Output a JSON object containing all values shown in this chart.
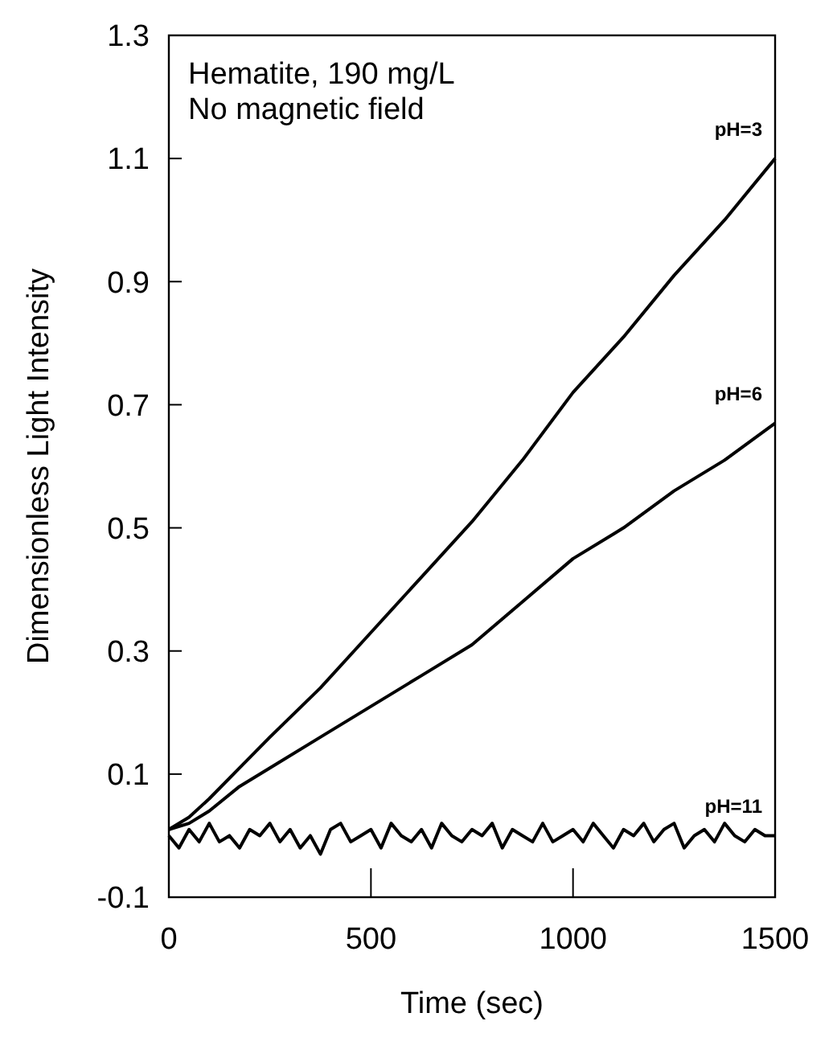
{
  "chart_data": {
    "type": "line",
    "xlabel": "Time (sec)",
    "ylabel": "Dimensionless Light Intensity",
    "annotations": [
      "Hematite, 190 mg/L",
      "No magnetic field"
    ],
    "xlim": [
      0,
      1500
    ],
    "ylim": [
      -0.1,
      1.3
    ],
    "xticks": [
      0,
      500,
      1000,
      1500
    ],
    "yticks": [
      -0.1,
      0.1,
      0.3,
      0.5,
      0.7,
      0.9,
      1.1,
      1.3
    ],
    "grid": false,
    "marker": "none",
    "line_style": "solid",
    "series": [
      {
        "name": "pH=3",
        "color": "#000000",
        "x": [
          0,
          50,
          100,
          175,
          250,
          375,
          500,
          625,
          750,
          875,
          1000,
          1125,
          1250,
          1375,
          1500
        ],
        "values": [
          0.01,
          0.03,
          0.06,
          0.11,
          0.16,
          0.24,
          0.33,
          0.42,
          0.51,
          0.61,
          0.72,
          0.81,
          0.91,
          1.0,
          1.1
        ]
      },
      {
        "name": "pH=6",
        "color": "#000000",
        "x": [
          0,
          50,
          100,
          175,
          250,
          375,
          500,
          625,
          750,
          875,
          1000,
          1125,
          1250,
          1375,
          1500
        ],
        "values": [
          0.01,
          0.02,
          0.04,
          0.08,
          0.11,
          0.16,
          0.21,
          0.26,
          0.31,
          0.38,
          0.45,
          0.5,
          0.56,
          0.61,
          0.67
        ]
      },
      {
        "name": "pH=11",
        "color": "#000000",
        "x": [
          0,
          25,
          50,
          75,
          100,
          125,
          150,
          175,
          200,
          225,
          250,
          275,
          300,
          325,
          350,
          375,
          400,
          425,
          450,
          475,
          500,
          525,
          550,
          575,
          600,
          625,
          650,
          675,
          700,
          725,
          750,
          775,
          800,
          825,
          850,
          875,
          900,
          925,
          950,
          975,
          1000,
          1025,
          1050,
          1075,
          1100,
          1125,
          1150,
          1175,
          1200,
          1225,
          1250,
          1275,
          1300,
          1325,
          1350,
          1375,
          1400,
          1425,
          1450,
          1475,
          1500
        ],
        "values": [
          0.0,
          -0.02,
          0.01,
          -0.01,
          0.02,
          -0.01,
          0.0,
          -0.02,
          0.01,
          0.0,
          0.02,
          -0.01,
          0.01,
          -0.02,
          0.0,
          -0.03,
          0.01,
          0.02,
          -0.01,
          0.0,
          0.01,
          -0.02,
          0.02,
          0.0,
          -0.01,
          0.01,
          -0.02,
          0.02,
          0.0,
          -0.01,
          0.01,
          0.0,
          0.02,
          -0.02,
          0.01,
          0.0,
          -0.01,
          0.02,
          -0.01,
          0.0,
          0.01,
          -0.01,
          0.02,
          0.0,
          -0.02,
          0.01,
          0.0,
          0.02,
          -0.01,
          0.01,
          0.02,
          -0.02,
          0.0,
          0.01,
          -0.01,
          0.02,
          0.0,
          -0.01,
          0.01,
          0.0,
          0.0
        ]
      }
    ]
  }
}
